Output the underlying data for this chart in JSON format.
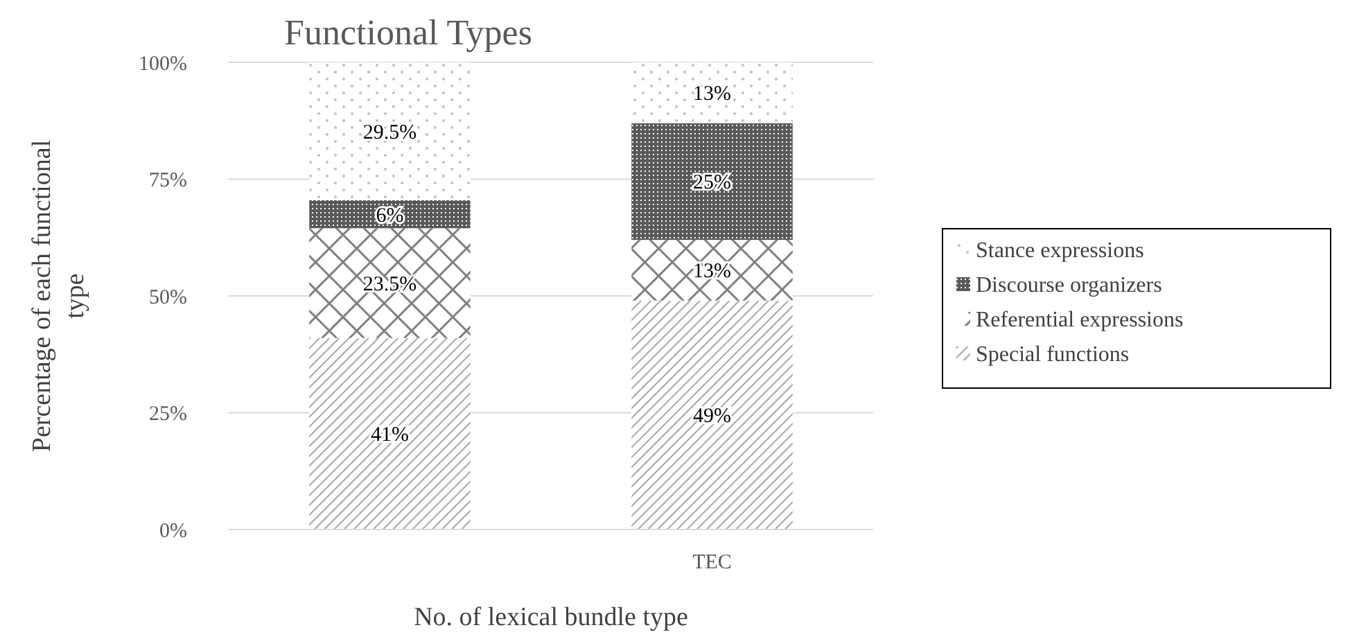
{
  "chart_data": {
    "type": "bar",
    "title": "Functional Types",
    "xlabel": "No. of lexical bundle type",
    "ylabel": "Percentage of each functional type",
    "categories": [
      null,
      "TEC"
    ],
    "stacked": true,
    "series": [
      {
        "name": "Special functions",
        "color": "#a6a6a6",
        "values": [
          41,
          49
        ],
        "value_labels": [
          "41%",
          "49%"
        ]
      },
      {
        "name": "Referential expressions",
        "color": "#7f7f7f",
        "values": [
          23.5,
          13
        ],
        "value_labels": [
          "23.5%",
          "13%"
        ]
      },
      {
        "name": "Discourse organizers",
        "color": "#595959",
        "values": [
          6,
          25
        ],
        "value_labels": [
          "6%",
          "25%"
        ]
      },
      {
        "name": "Stance expressions",
        "color": "#bfbfbf",
        "values": [
          29.5,
          13
        ],
        "value_labels": [
          "29.5%",
          "13%"
        ]
      }
    ],
    "ylim": [
      0,
      100
    ],
    "yticks": [
      {
        "value": 0,
        "label": "0%"
      },
      {
        "value": 25,
        "label": "25%"
      },
      {
        "value": 50,
        "label": "50%"
      },
      {
        "value": 75,
        "label": "75%"
      },
      {
        "value": 100,
        "label": "100%"
      }
    ],
    "grid": "y",
    "legend": "right"
  }
}
